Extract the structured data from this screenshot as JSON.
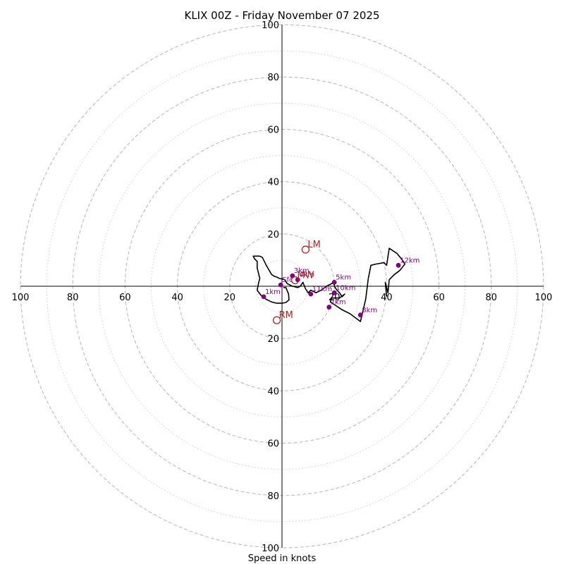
{
  "chart_data": {
    "type": "scatter",
    "subtype": "hodograph",
    "title": "KLIX 00Z - Friday November 07 2025",
    "xlabel": "Speed in knots",
    "ring_major": [
      20,
      40,
      60,
      80,
      100
    ],
    "ring_minor": [
      10,
      30,
      50,
      70,
      90
    ],
    "axis_ticks": [
      "20",
      "40",
      "60",
      "80",
      "100"
    ],
    "max_speed": 100,
    "trace": [
      [
        0.5,
        -0.5
      ],
      [
        1.5,
        -0.5
      ],
      [
        2.5,
        -3
      ],
      [
        2.7,
        -5.2
      ],
      [
        1.5,
        -6.2
      ],
      [
        0,
        -6.5
      ],
      [
        -2,
        -6.5
      ],
      [
        -4,
        -6
      ],
      [
        -6,
        -5
      ],
      [
        -8,
        -3.5
      ],
      [
        -9.5,
        -1.5
      ],
      [
        -9,
        1
      ],
      [
        -8.5,
        3
      ],
      [
        -9,
        5
      ],
      [
        -9.5,
        7
      ],
      [
        -9.5,
        9.5
      ],
      [
        -10.5,
        10.5
      ],
      [
        -11,
        11.5
      ],
      [
        -10,
        11.5
      ],
      [
        -8.5,
        11.5
      ],
      [
        -7.5,
        11
      ],
      [
        -6,
        8
      ],
      [
        -4,
        4.5
      ],
      [
        -3,
        3.8
      ],
      [
        -2,
        3.5
      ],
      [
        -1,
        3
      ],
      [
        1,
        2.5
      ],
      [
        2,
        1
      ],
      [
        4,
        0
      ],
      [
        6,
        -0.5
      ],
      [
        7,
        0
      ],
      [
        8,
        1.5
      ],
      [
        9,
        -1
      ],
      [
        10,
        -2.5
      ],
      [
        11,
        -1.5
      ],
      [
        12,
        -2
      ],
      [
        13,
        -2.5
      ],
      [
        15,
        -1.5
      ],
      [
        17,
        0
      ],
      [
        20,
        1.5
      ],
      [
        20,
        0
      ],
      [
        21,
        -1.5
      ],
      [
        22,
        -2.5
      ],
      [
        23,
        -4
      ],
      [
        24,
        -3
      ],
      [
        22,
        -4.5
      ],
      [
        19,
        -4.5
      ],
      [
        18.5,
        -6
      ],
      [
        20,
        -7
      ],
      [
        23,
        -9
      ],
      [
        26,
        -10.5
      ],
      [
        30,
        -13.5
      ],
      [
        32,
        -5
      ],
      [
        33,
        3
      ],
      [
        33.5,
        5.5
      ],
      [
        34,
        8
      ],
      [
        36,
        8.5
      ],
      [
        39,
        9
      ],
      [
        40,
        8
      ],
      [
        41,
        14.5
      ],
      [
        44,
        12.5
      ],
      [
        46,
        10
      ],
      [
        47,
        8.5
      ],
      [
        45,
        6
      ],
      [
        43,
        4.5
      ],
      [
        41,
        2.5
      ],
      [
        40.5,
        -2.5
      ],
      [
        39.5,
        1.5
      ],
      [
        40,
        -4
      ]
    ],
    "height_markers": [
      {
        "label": "Sfc",
        "x": -0.5,
        "y": 0.5
      },
      {
        "label": "1km",
        "x": -7,
        "y": -4
      },
      {
        "label": "3km",
        "x": 4,
        "y": 4
      },
      {
        "label": "4km",
        "x": 6,
        "y": 2.5
      },
      {
        "label": "5km",
        "x": 20,
        "y": 1.5
      },
      {
        "label": "7km",
        "x": 18,
        "y": -8
      },
      {
        "label": "8km",
        "x": 30,
        "y": -11
      },
      {
        "label": "10km",
        "x": 20,
        "y": -2.5
      },
      {
        "label": "11km",
        "x": 11,
        "y": -3
      },
      {
        "label": "12km",
        "x": 44.5,
        "y": 8
      }
    ],
    "motion_markers": [
      {
        "label": "LM",
        "x": 9,
        "y": 14
      },
      {
        "label": "MW",
        "x": 5,
        "y": 2.3
      },
      {
        "label": "RM",
        "x": -2,
        "y": -13
      }
    ]
  }
}
